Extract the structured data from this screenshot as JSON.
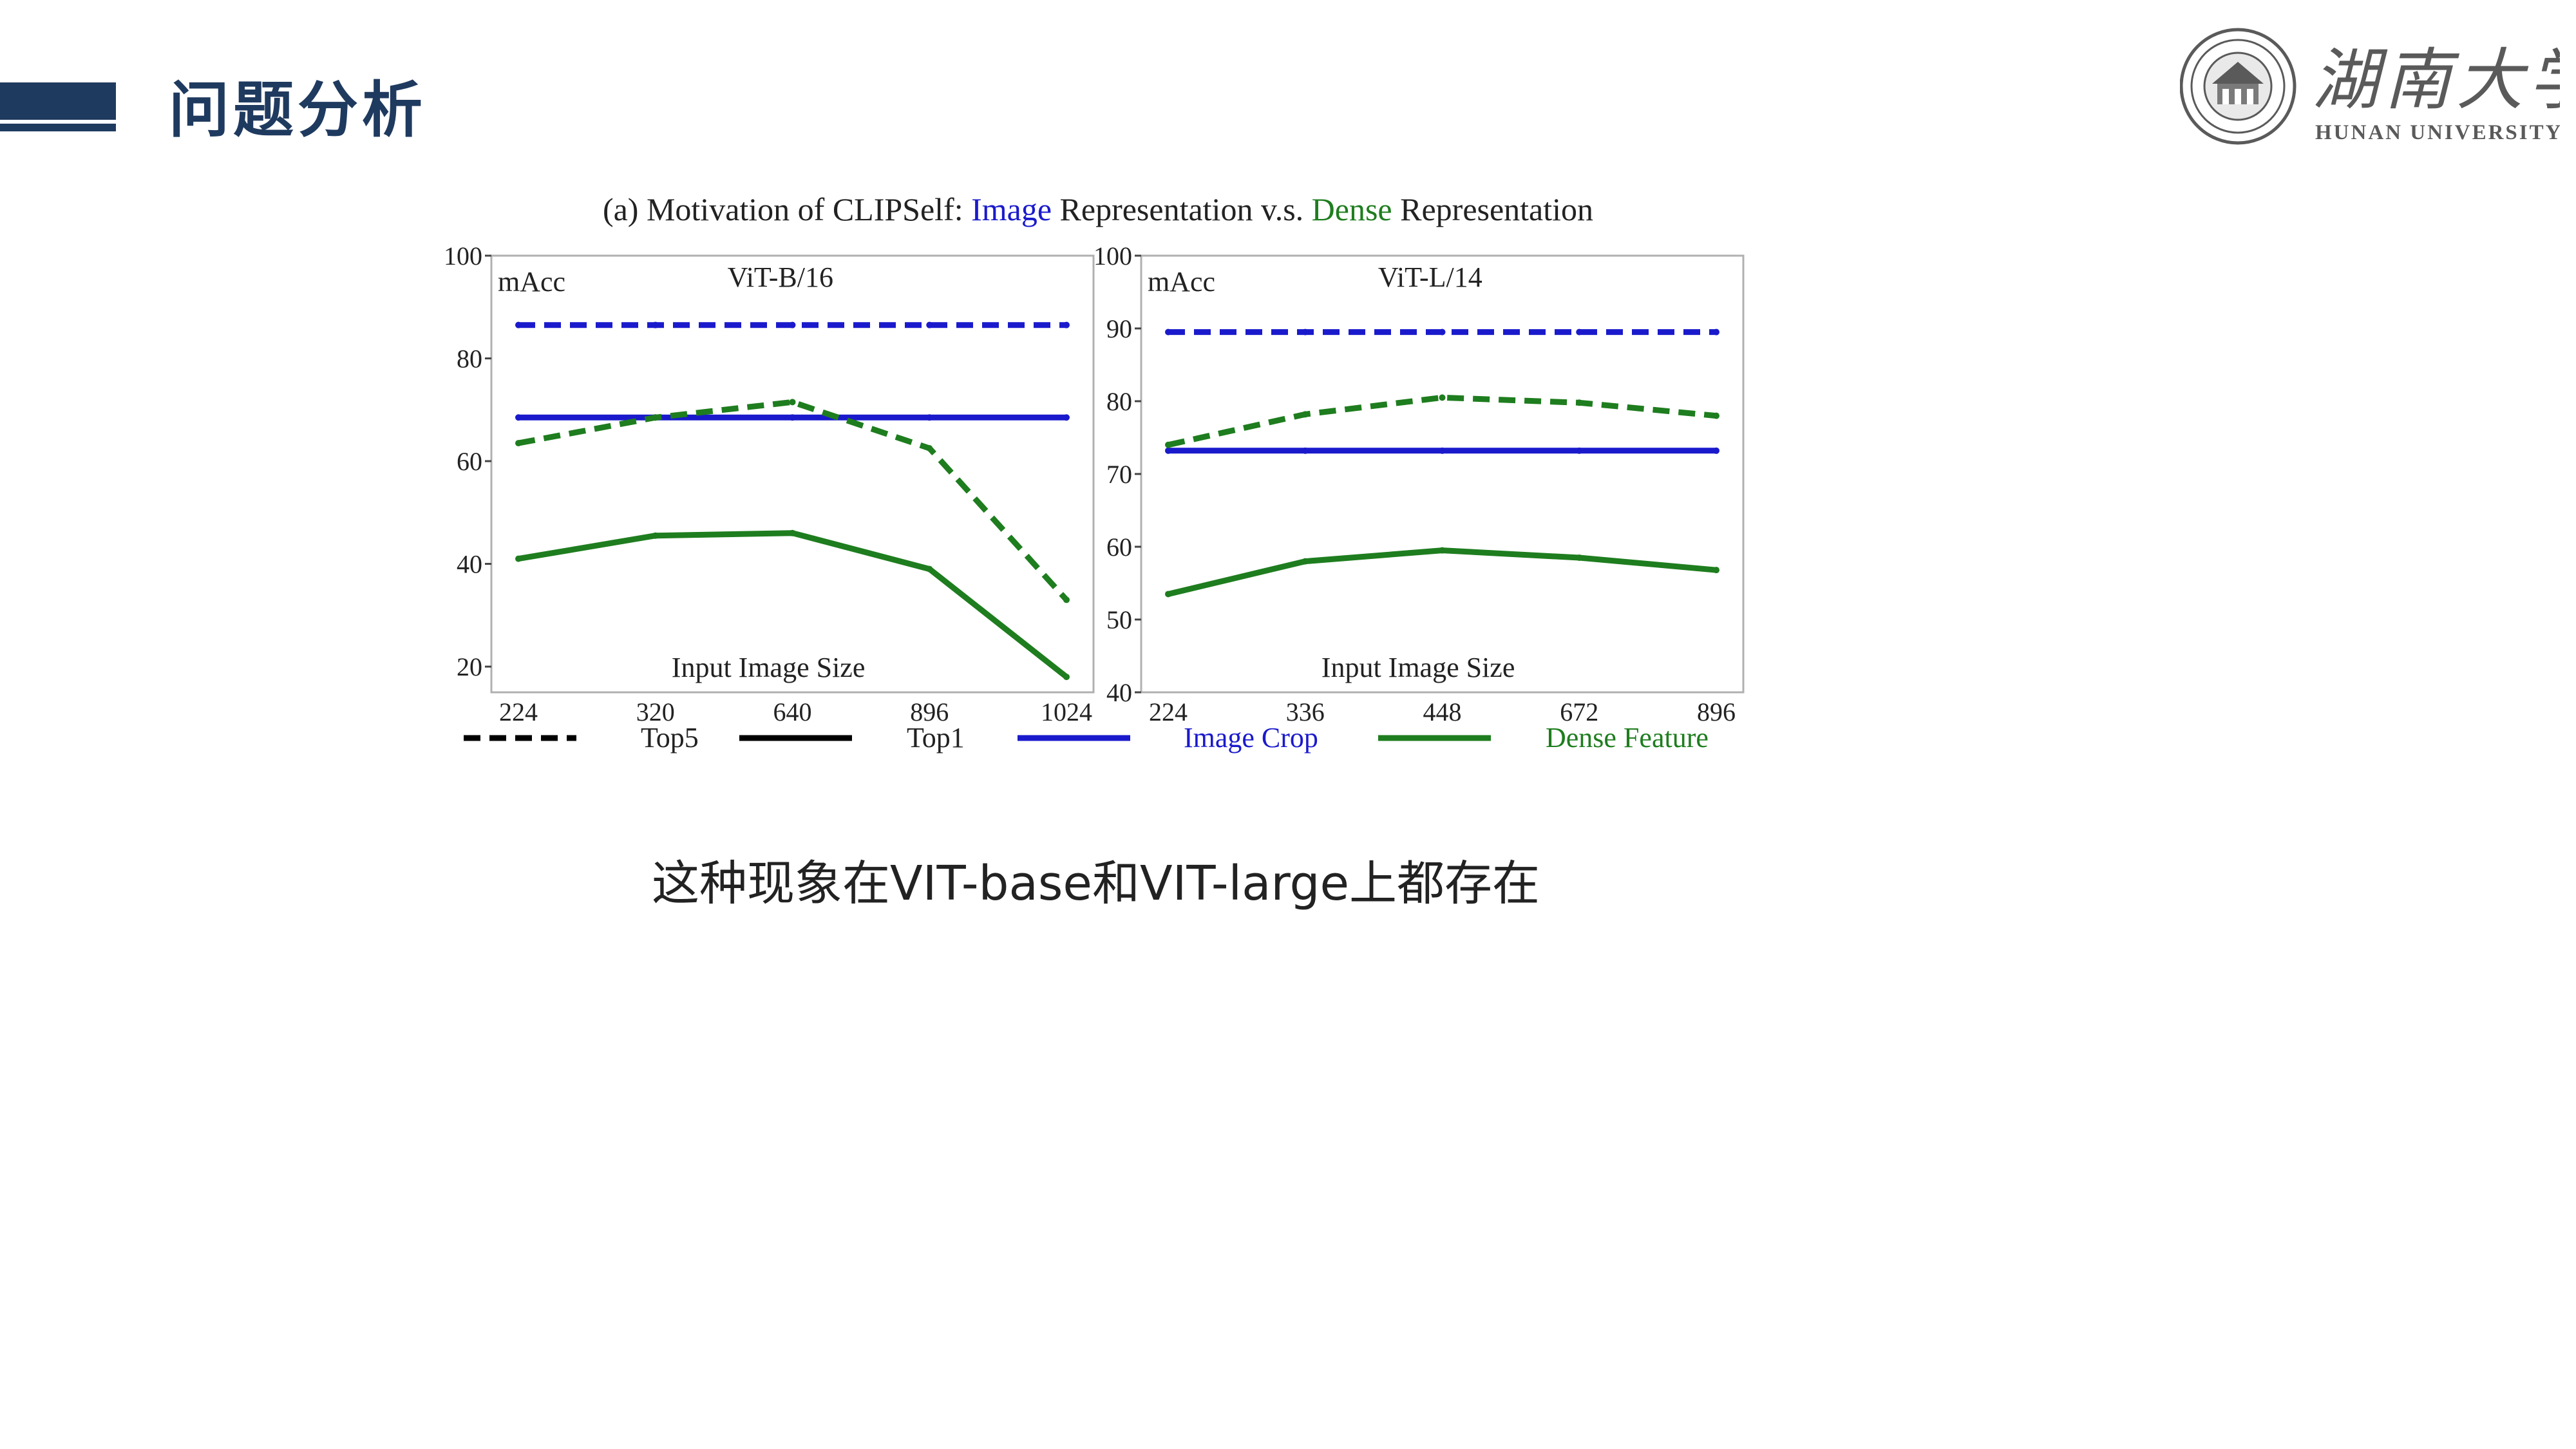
{
  "slide": {
    "title": "问题分析",
    "caption": "这种现象在VIT-base和VIT-large上都存在"
  },
  "logo": {
    "name_cn": "湖南大学",
    "name_en": "HUNAN UNIVERSITY",
    "color": "#5a5a5a"
  },
  "colors": {
    "header": "#1f3a5f",
    "image_crop": "#1a1acc",
    "dense_feature": "#1e7d1e"
  },
  "figure": {
    "title_parts": [
      {
        "text": "(a) Motivation of CLIPSelf: ",
        "color": "#222222"
      },
      {
        "text": "Image",
        "color": "#1a1acc"
      },
      {
        "text": " Representation v.s. ",
        "color": "#222222"
      },
      {
        "text": "Dense",
        "color": "#1e7d1e"
      },
      {
        "text": " Representation",
        "color": "#222222"
      }
    ],
    "legend": [
      {
        "label": "Top5",
        "style": "dashed",
        "color": "#000000"
      },
      {
        "label": "Top1",
        "style": "solid",
        "color": "#000000"
      },
      {
        "label": "Image Crop",
        "style": "solid",
        "color": "#1a1acc"
      },
      {
        "label": "Dense Feature",
        "style": "solid",
        "color": "#1e7d1e"
      }
    ]
  },
  "chart_data": [
    {
      "type": "line",
      "title": "ViT-B/16",
      "ylabel": "mAcc",
      "xlabel": "Input Image Size",
      "categories": [
        "224",
        "320",
        "640",
        "896",
        "1024"
      ],
      "ylim": [
        15,
        100
      ],
      "yticks": [
        20,
        40,
        60,
        80,
        100
      ],
      "series": [
        {
          "name": "Image Crop Top5",
          "color": "#1a1acc",
          "dash": true,
          "values": [
            86.5,
            86.5,
            86.5,
            86.5,
            86.5
          ]
        },
        {
          "name": "Image Crop Top1",
          "color": "#1a1acc",
          "dash": false,
          "values": [
            68.5,
            68.5,
            68.5,
            68.5,
            68.5
          ]
        },
        {
          "name": "Dense Feature Top5",
          "color": "#1e7d1e",
          "dash": true,
          "values": [
            63.5,
            68.5,
            71.5,
            62.5,
            33
          ]
        },
        {
          "name": "Dense Feature Top1",
          "color": "#1e7d1e",
          "dash": false,
          "values": [
            41,
            45.5,
            46,
            39,
            18
          ]
        }
      ]
    },
    {
      "type": "line",
      "title": "ViT-L/14",
      "ylabel": "mAcc",
      "xlabel": "Input Image Size",
      "categories": [
        "224",
        "336",
        "448",
        "672",
        "896"
      ],
      "ylim": [
        40,
        100
      ],
      "yticks": [
        40,
        50,
        60,
        70,
        80,
        90,
        100
      ],
      "series": [
        {
          "name": "Image Crop Top5",
          "color": "#1a1acc",
          "dash": true,
          "values": [
            89.5,
            89.5,
            89.5,
            89.5,
            89.5
          ]
        },
        {
          "name": "Image Crop Top1",
          "color": "#1a1acc",
          "dash": false,
          "values": [
            73.2,
            73.2,
            73.2,
            73.2,
            73.2
          ]
        },
        {
          "name": "Dense Feature Top5",
          "color": "#1e7d1e",
          "dash": true,
          "values": [
            74,
            78.2,
            80.5,
            79.8,
            78
          ]
        },
        {
          "name": "Dense Feature Top1",
          "color": "#1e7d1e",
          "dash": false,
          "values": [
            53.5,
            58,
            59.5,
            58.5,
            56.8
          ]
        }
      ]
    }
  ]
}
